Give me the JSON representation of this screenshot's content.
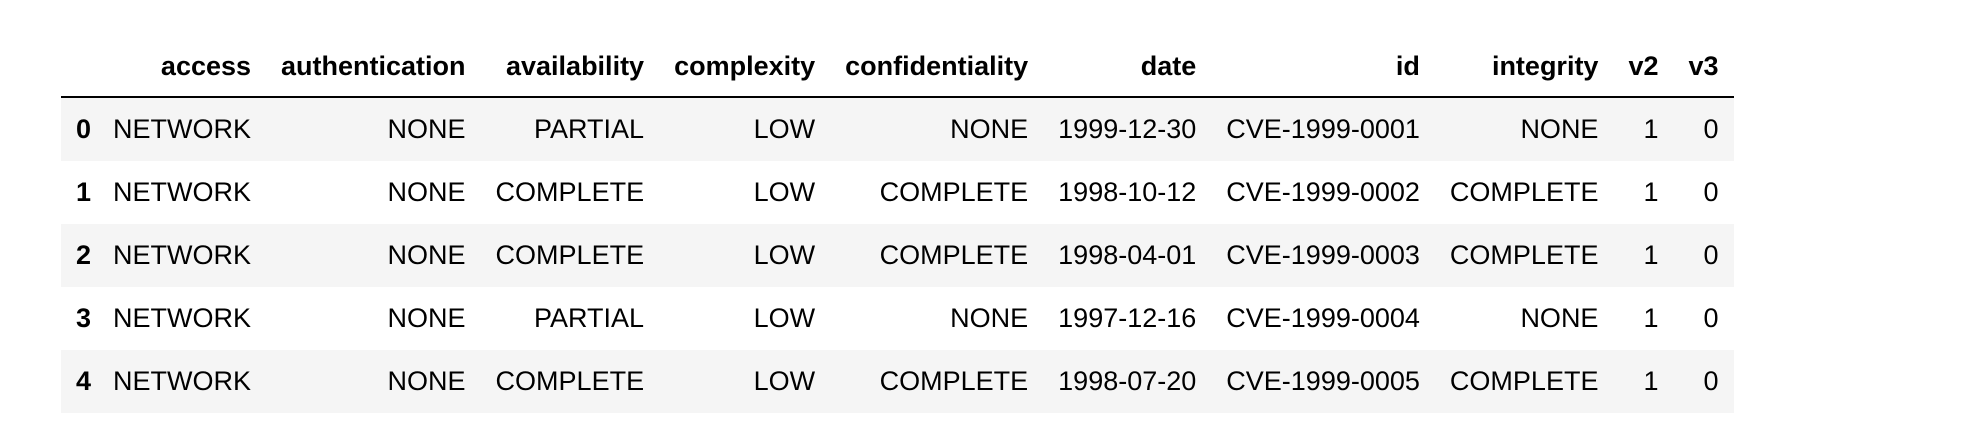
{
  "table": {
    "columns": [
      "",
      "access",
      "authentication",
      "availability",
      "complexity",
      "confidentiality",
      "date",
      "id",
      "integrity",
      "v2",
      "v3"
    ],
    "rows": [
      {
        "index": "0",
        "access": "NETWORK",
        "authentication": "NONE",
        "availability": "PARTIAL",
        "complexity": "LOW",
        "confidentiality": "NONE",
        "date": "1999-12-30",
        "id": "CVE-1999-0001",
        "integrity": "NONE",
        "v2": "1",
        "v3": "0"
      },
      {
        "index": "1",
        "access": "NETWORK",
        "authentication": "NONE",
        "availability": "COMPLETE",
        "complexity": "LOW",
        "confidentiality": "COMPLETE",
        "date": "1998-10-12",
        "id": "CVE-1999-0002",
        "integrity": "COMPLETE",
        "v2": "1",
        "v3": "0"
      },
      {
        "index": "2",
        "access": "NETWORK",
        "authentication": "NONE",
        "availability": "COMPLETE",
        "complexity": "LOW",
        "confidentiality": "COMPLETE",
        "date": "1998-04-01",
        "id": "CVE-1999-0003",
        "integrity": "COMPLETE",
        "v2": "1",
        "v3": "0"
      },
      {
        "index": "3",
        "access": "NETWORK",
        "authentication": "NONE",
        "availability": "PARTIAL",
        "complexity": "LOW",
        "confidentiality": "NONE",
        "date": "1997-12-16",
        "id": "CVE-1999-0004",
        "integrity": "NONE",
        "v2": "1",
        "v3": "0"
      },
      {
        "index": "4",
        "access": "NETWORK",
        "authentication": "NONE",
        "availability": "COMPLETE",
        "complexity": "LOW",
        "confidentiality": "COMPLETE",
        "date": "1998-07-20",
        "id": "CVE-1999-0005",
        "integrity": "COMPLETE",
        "v2": "1",
        "v3": "0"
      }
    ]
  },
  "colors": {
    "stripe": "#f5f5f5",
    "header_rule": "#000000",
    "text": "#000000"
  }
}
